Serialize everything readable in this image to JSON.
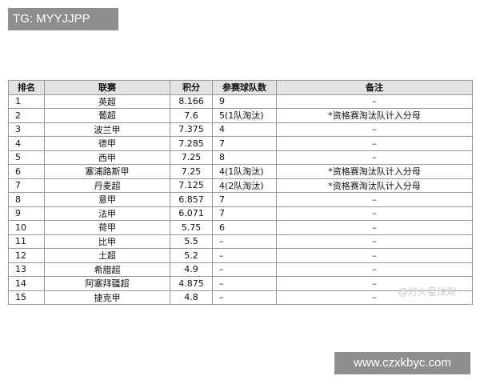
{
  "header": {
    "tag": "TG: MYYJJPP"
  },
  "table": {
    "columns": [
      "排名",
      "联赛",
      "积分",
      "参赛球队数",
      "备注"
    ],
    "rows": [
      [
        "1",
        "英超",
        "8.166",
        "9",
        "–"
      ],
      [
        "2",
        "葡超",
        "7.6",
        "5(1队淘汰)",
        "*资格赛淘汰队计入分母"
      ],
      [
        "3",
        "波兰甲",
        "7.375",
        "4",
        "–"
      ],
      [
        "4",
        "德甲",
        "7.285",
        "7",
        "–"
      ],
      [
        "5",
        "西甲",
        "7.25",
        "8",
        "–"
      ],
      [
        "6",
        "塞浦路斯甲",
        "7.25",
        "4(1队淘汰)",
        "*资格赛淘汰队计入分母"
      ],
      [
        "7",
        "丹麦超",
        "7.125",
        "4(2队淘汰)",
        "*资格赛淘汰队计入分母"
      ],
      [
        "8",
        "意甲",
        "6.857",
        "7",
        "–"
      ],
      [
        "9",
        "法甲",
        "6.071",
        "7",
        "–"
      ],
      [
        "10",
        "荷甲",
        "5.75",
        "6",
        "–"
      ],
      [
        "11",
        "比甲",
        "5.5",
        "–",
        "–"
      ],
      [
        "12",
        "土超",
        "5.2",
        "–",
        "–"
      ],
      [
        "13",
        "希腊超",
        "4.9",
        "–",
        "–"
      ],
      [
        "14",
        "阿塞拜疆超",
        "4.875",
        "–",
        "–"
      ],
      [
        "15",
        "捷克甲",
        "4.8",
        "–",
        "–"
      ]
    ]
  },
  "watermark": "@灯火星球观",
  "footer": {
    "site": "www.czxkbyc.com"
  }
}
